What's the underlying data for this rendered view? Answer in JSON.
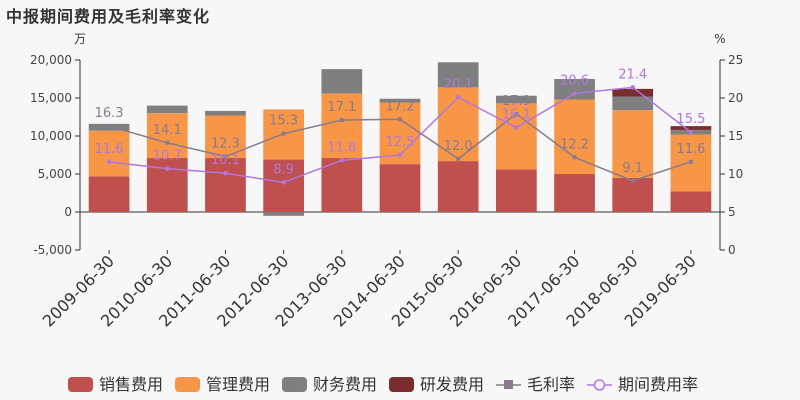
{
  "title": "中报期间费用及毛利率变化",
  "chart_data": {
    "type": "bar",
    "stacked": true,
    "categories": [
      "2009-06-30",
      "2010-06-30",
      "2011-06-30",
      "2012-06-30",
      "2013-06-30",
      "2014-06-30",
      "2015-06-30",
      "2016-06-30",
      "2017-06-30",
      "2018-06-30",
      "2019-06-30"
    ],
    "y_left": {
      "unit": "万",
      "ylim": [
        -5000,
        20000
      ],
      "ticks": [
        "-5,000",
        "0",
        "5,000",
        "10,000",
        "15,000",
        "20,000"
      ],
      "tick_values": [
        -5000,
        0,
        5000,
        10000,
        15000,
        20000
      ]
    },
    "y_right": {
      "unit": "%",
      "ylim": [
        0,
        25
      ],
      "ticks": [
        "0",
        "5",
        "10",
        "15",
        "20",
        "25"
      ],
      "tick_values": [
        0,
        5,
        10,
        15,
        20,
        25
      ]
    },
    "bar_series": [
      {
        "name": "销售费用",
        "color": "#c0504d",
        "values": [
          4700,
          7100,
          7100,
          6900,
          7100,
          6300,
          6700,
          5600,
          5000,
          4500,
          2700
        ]
      },
      {
        "name": "管理费用",
        "color": "#f79646",
        "values": [
          6000,
          5900,
          5600,
          6600,
          8500,
          8100,
          9700,
          8700,
          9800,
          8900,
          7500
        ]
      },
      {
        "name": "财务费用",
        "color": "#7f7f7f",
        "values": [
          900,
          1000,
          600,
          -500,
          3200,
          500,
          3300,
          1000,
          2700,
          1800,
          600
        ]
      },
      {
        "name": "研发费用",
        "color": "#7b2c2c",
        "values": [
          0,
          0,
          0,
          0,
          0,
          0,
          0,
          0,
          0,
          1000,
          500
        ]
      }
    ],
    "line_series": [
      {
        "name": "毛利率",
        "color": "#8a7a8e",
        "marker": "square",
        "values": [
          16.3,
          14.1,
          12.3,
          15.3,
          17.1,
          17.2,
          12.0,
          17.9,
          12.2,
          9.1,
          11.6
        ],
        "labels": [
          "16.3",
          "14.1",
          "12.3",
          "15.3",
          "17.1",
          "17.2",
          "12.0",
          "17.9",
          "12.2",
          "9.1",
          "11.6"
        ]
      },
      {
        "name": "期间费用率",
        "color": "#b276e0",
        "marker": "circle",
        "values": [
          11.6,
          10.7,
          10.1,
          8.9,
          11.8,
          12.5,
          20.1,
          16.1,
          20.6,
          21.4,
          15.5
        ],
        "labels": [
          "11.6",
          "10.7",
          "10.1",
          "8.9",
          "11.8",
          "12.5",
          "20.1",
          "16.1",
          "20.6",
          "21.4",
          "15.5"
        ]
      }
    ],
    "grid": false,
    "legend": "bottom"
  }
}
